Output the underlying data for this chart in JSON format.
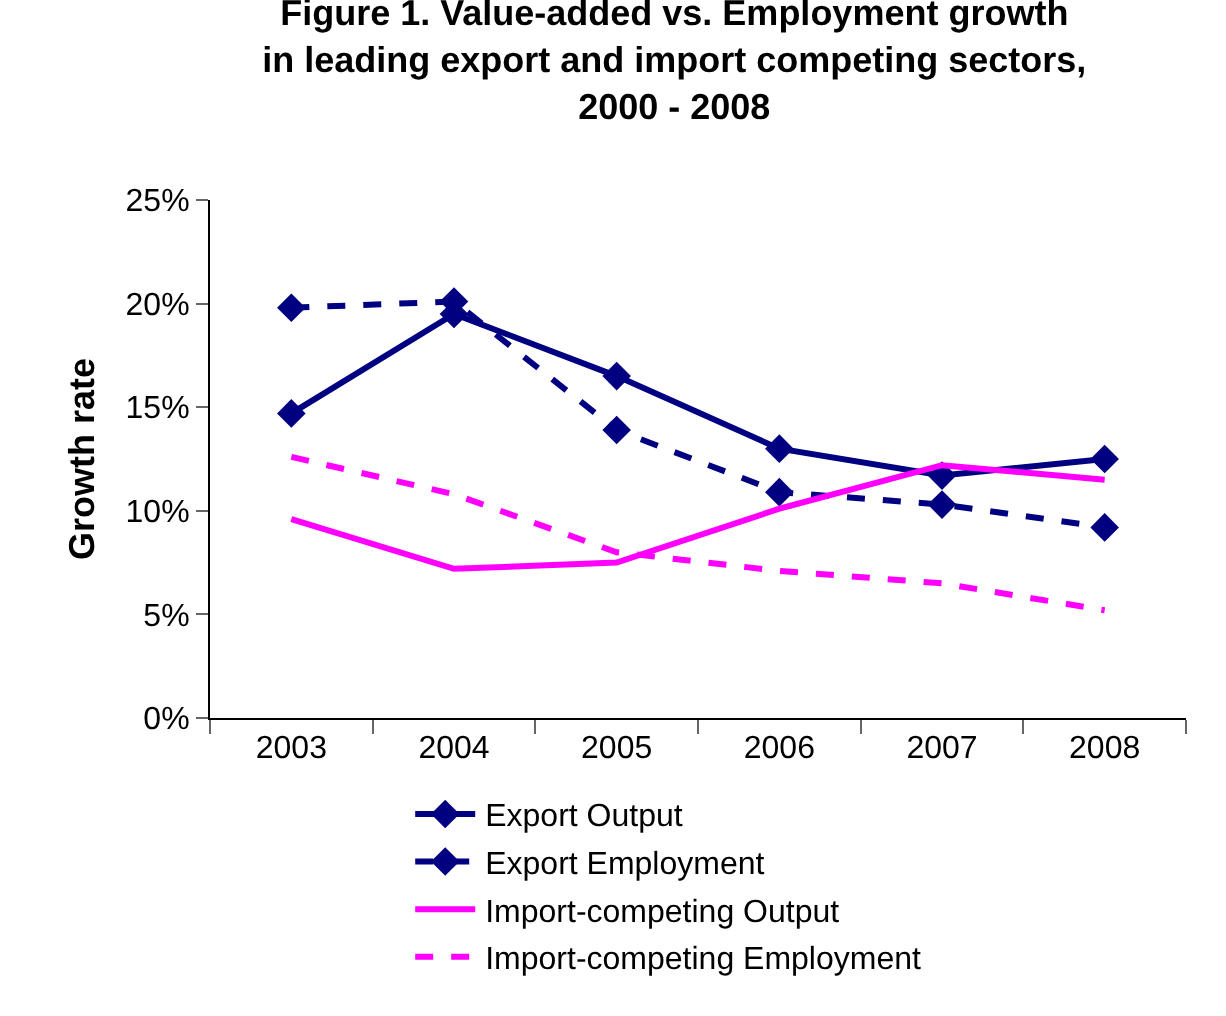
{
  "chart_data": {
    "type": "line",
    "title": "Figure 1. Value-added vs. Employment growth\nin leading export and import competing sectors,\n2000 - 2008",
    "ylabel": "Growth rate",
    "categories": [
      "2003",
      "2004",
      "2005",
      "2006",
      "2007",
      "2008"
    ],
    "series": [
      {
        "name": "Export Output",
        "color": "#000080",
        "marker": "diamond",
        "line_style": "solid",
        "values": [
          14.7,
          19.5,
          16.5,
          13.0,
          11.7,
          12.5
        ]
      },
      {
        "name": "Export Employment",
        "color": "#000080",
        "marker": "diamond",
        "line_style": "dashed",
        "values": [
          19.8,
          20.1,
          13.9,
          10.9,
          10.3,
          9.2
        ]
      },
      {
        "name": "Import-competing Output",
        "color": "#ff00ff",
        "marker": "none",
        "line_style": "solid",
        "values": [
          9.6,
          7.2,
          7.5,
          10.1,
          12.2,
          11.5
        ]
      },
      {
        "name": "Import-competing Employment",
        "color": "#ff00ff",
        "marker": "none",
        "line_style": "dashed",
        "values": [
          12.6,
          10.8,
          8.0,
          7.1,
          6.5,
          5.2
        ]
      }
    ],
    "ylim": [
      0,
      25
    ],
    "yticks": [
      {
        "value": 0,
        "label": "0%"
      },
      {
        "value": 5,
        "label": "5%"
      },
      {
        "value": 10,
        "label": "10%"
      },
      {
        "value": 15,
        "label": "15%"
      },
      {
        "value": 20,
        "label": "20%"
      },
      {
        "value": 25,
        "label": "25%"
      }
    ],
    "grid": false,
    "legend": "bottom"
  }
}
